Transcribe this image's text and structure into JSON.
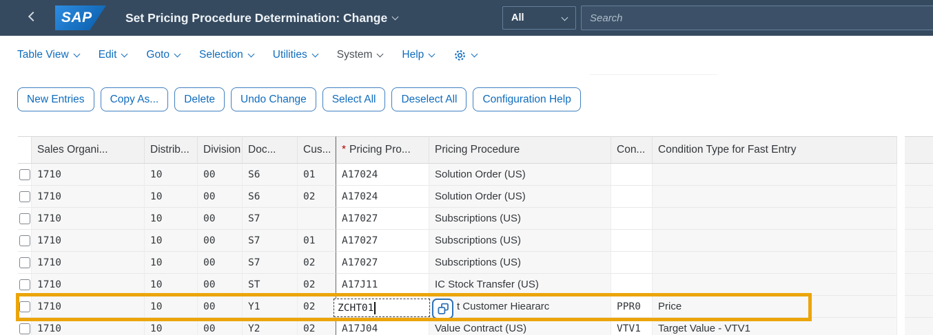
{
  "topbar": {
    "logo_text": "SAP",
    "title": "Set Pricing Procedure Determination: Change",
    "scope_value": "All",
    "search_placeholder": "Search"
  },
  "menubar": {
    "items": [
      {
        "label": "Table View",
        "muted": false
      },
      {
        "label": "Edit",
        "muted": false
      },
      {
        "label": "Goto",
        "muted": false
      },
      {
        "label": "Selection",
        "muted": false
      },
      {
        "label": "Utilities",
        "muted": false
      },
      {
        "label": "System",
        "muted": true
      },
      {
        "label": "Help",
        "muted": false
      }
    ]
  },
  "toolbar": {
    "buttons": [
      "New Entries",
      "Copy As...",
      "Delete",
      "Undo Change",
      "Select All",
      "Deselect All",
      "Configuration Help"
    ]
  },
  "table": {
    "required_marker": "*",
    "columns": [
      {
        "key": "sales",
        "label": "Sales Organi...",
        "required": false
      },
      {
        "key": "distrib",
        "label": "Distrib...",
        "required": false
      },
      {
        "key": "division",
        "label": "Division",
        "required": false
      },
      {
        "key": "doc",
        "label": "Doc...",
        "required": false
      },
      {
        "key": "cus",
        "label": "Cus...",
        "required": false
      },
      {
        "key": "ppro",
        "label": "Pricing Pro...",
        "required": true
      },
      {
        "key": "pproc",
        "label": "Pricing Procedure",
        "required": false
      },
      {
        "key": "con",
        "label": "Con...",
        "required": false
      },
      {
        "key": "cond",
        "label": "Condition Type for Fast Entry",
        "required": false
      }
    ],
    "rows": [
      {
        "cells": [
          "1710",
          "10",
          "00",
          "S6",
          "01",
          "A17024",
          "Solution Order (US)",
          "",
          ""
        ]
      },
      {
        "cells": [
          "1710",
          "10",
          "00",
          "S6",
          "02",
          "A17024",
          "Solution Order (US)",
          "",
          ""
        ]
      },
      {
        "cells": [
          "1710",
          "10",
          "00",
          "S7",
          "",
          "A17027",
          "Subscriptions (US)",
          "",
          ""
        ]
      },
      {
        "cells": [
          "1710",
          "10",
          "00",
          "S7",
          "01",
          "A17027",
          "Subscriptions (US)",
          "",
          ""
        ]
      },
      {
        "cells": [
          "1710",
          "10",
          "00",
          "S7",
          "02",
          "A17027",
          "Subscriptions (US)",
          "",
          ""
        ]
      },
      {
        "cells": [
          "1710",
          "10",
          "00",
          "ST",
          "02",
          "A17J11",
          "IC Stock Transfer (US)",
          "",
          ""
        ]
      },
      {
        "cells": [
          "1710",
          "10",
          "00",
          "Y1",
          "02",
          "ZCHT01",
          "t Customer Hieararc",
          "PPR0",
          "Price"
        ],
        "editing": true,
        "highlighted": true
      },
      {
        "cells": [
          "1710",
          "10",
          "00",
          "Y2",
          "02",
          "A17J04",
          "Value Contract (US)",
          "VTV1",
          "Target Value - VTV1"
        ]
      }
    ],
    "edit_field": {
      "value": "ZCHT01"
    }
  },
  "colors": {
    "topbar_bg": "#354A5F",
    "link_blue": "#0F6CBD",
    "highlight_orange": "#EBA50B",
    "required_red": "#B00000"
  }
}
